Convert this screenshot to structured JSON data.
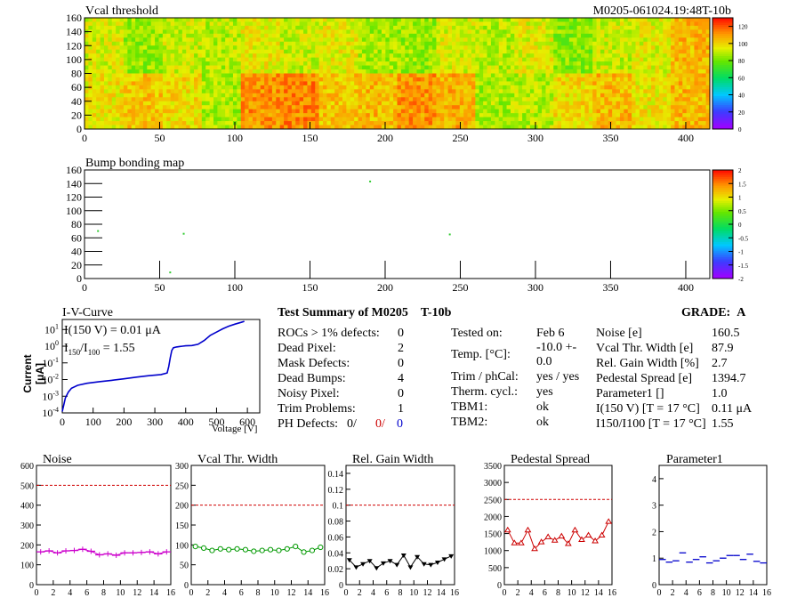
{
  "header": {
    "title_left": "Vcal threshold",
    "title_right": "M0205-061024.19:48T-10b"
  },
  "colors": {
    "hist_line": "#d00000",
    "blue": "#0000cc",
    "red": "#cc0000"
  },
  "chart_data": [
    {
      "type": "heatmap",
      "name": "vcal-threshold",
      "title": "Vcal threshold",
      "xlim": [
        0,
        416
      ],
      "ylim": [
        0,
        160
      ],
      "xticks": [
        0,
        50,
        100,
        150,
        200,
        250,
        300,
        350,
        400
      ],
      "yticks": [
        0,
        20,
        40,
        60,
        80,
        100,
        120,
        140,
        160
      ],
      "colorbar": {
        "min": 0,
        "max": 130,
        "ticks": [
          0,
          20,
          40,
          60,
          80,
          100,
          120
        ]
      },
      "blocks_top": [
        92,
        84,
        90,
        88,
        95,
        90,
        94,
        86,
        84,
        92,
        88,
        93,
        82,
        90,
        93,
        104
      ],
      "blocks_bottom": [
        96,
        102,
        98,
        86,
        110,
        112,
        102,
        104,
        110,
        106,
        86,
        88,
        98,
        104,
        96,
        104
      ]
    },
    {
      "type": "scatter",
      "name": "bump-bonding-map",
      "title": "Bump bonding map",
      "xlim": [
        0,
        416
      ],
      "ylim": [
        0,
        160
      ],
      "xticks": [
        0,
        50,
        100,
        150,
        200,
        250,
        300,
        350,
        400
      ],
      "yticks": [
        0,
        20,
        40,
        60,
        80,
        100,
        120,
        140,
        160
      ],
      "colorbar": {
        "min": -2,
        "max": 2,
        "ticks": [
          -2,
          -1.5,
          -1,
          -0.5,
          0,
          0.5,
          1,
          1.5,
          2
        ]
      },
      "points": [
        [
          9,
          70
        ],
        [
          57,
          9
        ],
        [
          66,
          66
        ],
        [
          190,
          143
        ],
        [
          243,
          65
        ]
      ]
    },
    {
      "type": "line",
      "name": "iv-curve",
      "title": "I-V-Curve",
      "xlabel": "Voltage [V]",
      "ylabel": "Current [μA]",
      "yscale": "log",
      "xlim": [
        0,
        640
      ],
      "ylim": [
        0.0001,
        40
      ],
      "xticks": [
        0,
        100,
        200,
        300,
        400,
        500,
        600
      ],
      "yticks": [
        0.0001,
        0.001,
        0.01,
        0.1,
        1,
        10
      ],
      "annotations": [
        "I(150 V) = 0.01 μA",
        "1.55"
      ],
      "x": [
        0,
        5,
        10,
        20,
        30,
        50,
        80,
        120,
        160,
        200,
        240,
        280,
        320,
        340,
        345,
        350,
        355,
        360,
        370,
        380,
        390,
        400,
        420,
        440,
        460,
        480,
        500,
        520,
        540,
        560,
        580,
        590
      ],
      "y": [
        0.00012,
        0.0003,
        0.0008,
        0.0018,
        0.003,
        0.0045,
        0.006,
        0.0075,
        0.009,
        0.011,
        0.014,
        0.017,
        0.02,
        0.025,
        0.06,
        0.2,
        0.55,
        0.8,
        0.9,
        0.95,
        1.0,
        1.05,
        1.1,
        1.3,
        2.2,
        4.5,
        7.0,
        11,
        16,
        21,
        27,
        31
      ]
    },
    {
      "type": "line",
      "name": "noise",
      "title": "Noise",
      "xlim": [
        0,
        16
      ],
      "ylim": [
        0,
        600
      ],
      "xticks": [
        0,
        2,
        4,
        6,
        8,
        10,
        12,
        14,
        16
      ],
      "yticks": [
        0,
        100,
        200,
        300,
        400,
        500,
        600
      ],
      "threshold": 500,
      "color": "#cc00cc",
      "marker": "cross",
      "values": [
        165,
        170,
        160,
        170,
        172,
        178,
        168,
        150,
        155,
        148,
        160,
        160,
        162,
        165,
        155,
        165
      ]
    },
    {
      "type": "line",
      "name": "vcal-thr-width",
      "title": "Vcal Thr. Width",
      "xlim": [
        0,
        16
      ],
      "ylim": [
        0,
        300
      ],
      "xticks": [
        0,
        2,
        4,
        6,
        8,
        10,
        12,
        14,
        16
      ],
      "yticks": [
        0,
        50,
        100,
        150,
        200,
        250,
        300
      ],
      "threshold": 200,
      "color": "#009900",
      "marker": "circle",
      "values": [
        96,
        92,
        86,
        90,
        88,
        90,
        88,
        84,
        86,
        88,
        86,
        90,
        96,
        82,
        86,
        94
      ]
    },
    {
      "type": "line",
      "name": "rel-gain-width",
      "title": "Rel. Gain Width",
      "xlim": [
        0,
        16
      ],
      "ylim": [
        0,
        0.15
      ],
      "xticks": [
        0,
        2,
        4,
        6,
        8,
        10,
        12,
        14,
        16
      ],
      "yticks": [
        0,
        0.02,
        0.04,
        0.06,
        0.08,
        0.1,
        0.12,
        0.14
      ],
      "threshold": 0.1,
      "color": "#000000",
      "marker": "triangle-down",
      "values": [
        0.031,
        0.022,
        0.026,
        0.03,
        0.021,
        0.027,
        0.03,
        0.025,
        0.037,
        0.022,
        0.035,
        0.026,
        0.025,
        0.028,
        0.032,
        0.036
      ]
    },
    {
      "type": "line",
      "name": "pedestal-spread",
      "title": "Pedestal Spread",
      "xlim": [
        0,
        16
      ],
      "ylim": [
        0,
        3500
      ],
      "xticks": [
        0,
        2,
        4,
        6,
        8,
        10,
        12,
        14,
        16
      ],
      "yticks": [
        0,
        500,
        1000,
        1500,
        2000,
        2500,
        3000,
        3500
      ],
      "threshold": 2500,
      "color": "#cc0000",
      "marker": "triangle-up",
      "values": [
        1600,
        1220,
        1220,
        1600,
        1050,
        1250,
        1400,
        1300,
        1420,
        1200,
        1600,
        1320,
        1450,
        1280,
        1450,
        1850
      ]
    },
    {
      "type": "line",
      "name": "parameter1",
      "title": "Parameter1",
      "xlim": [
        0,
        16
      ],
      "ylim": [
        0,
        4.5
      ],
      "xticks": [
        0,
        2,
        4,
        6,
        8,
        10,
        12,
        14,
        16
      ],
      "yticks": [
        0,
        1,
        2,
        3,
        4
      ],
      "color": "#0000cc",
      "marker": "dash",
      "connect": false,
      "values": [
        0.95,
        0.85,
        0.9,
        1.2,
        0.85,
        0.95,
        1.05,
        0.82,
        0.9,
        1.0,
        1.1,
        1.1,
        0.95,
        1.15,
        0.88,
        0.82
      ]
    }
  ],
  "summary": {
    "title": "Test Summary of M0205",
    "title_tag": "T-10b",
    "grade_label": "GRADE:",
    "grade_value": "A",
    "left_rows": [
      {
        "label": "ROCs > 1% defects:",
        "value": "0"
      },
      {
        "label": "Dead Pixel:",
        "value": "2"
      },
      {
        "label": "Mask Defects:",
        "value": "0"
      },
      {
        "label": "Dead Bumps:",
        "value": "4"
      },
      {
        "label": "Noisy Pixel:",
        "value": "0"
      },
      {
        "label": "Trim Problems:",
        "value": "1"
      }
    ],
    "ph_defects": {
      "label": "PH Defects:",
      "v1": "0/",
      "v2": "0/",
      "v3": "0"
    },
    "mid_rows": [
      {
        "label": "Tested on:",
        "value": "Feb 6"
      },
      {
        "label": "Temp. [°C]:",
        "value": "-10.0 +- 0.0"
      },
      {
        "label": "Trim / phCal:",
        "value": "yes / yes"
      },
      {
        "label": "Therm. cycl.:",
        "value": "yes"
      },
      {
        "label": "TBM1:",
        "value": "ok"
      },
      {
        "label": "TBM2:",
        "value": "ok"
      }
    ],
    "right_rows": [
      {
        "label": "Noise [e]",
        "value": "160.5"
      },
      {
        "label": "Vcal Thr. Width [e]",
        "value": "87.9"
      },
      {
        "label": "Rel. Gain Width [%]",
        "value": "2.7"
      },
      {
        "label": "Pedestal Spread [e]",
        "value": "1394.7"
      },
      {
        "label": "Parameter1 []",
        "value": "1.0"
      },
      {
        "label": "I(150 V) [T = 17 °C]",
        "value": "0.11 μA"
      },
      {
        "label": "I150/I100 [T = 17 °C]",
        "value": "1.55"
      }
    ]
  }
}
